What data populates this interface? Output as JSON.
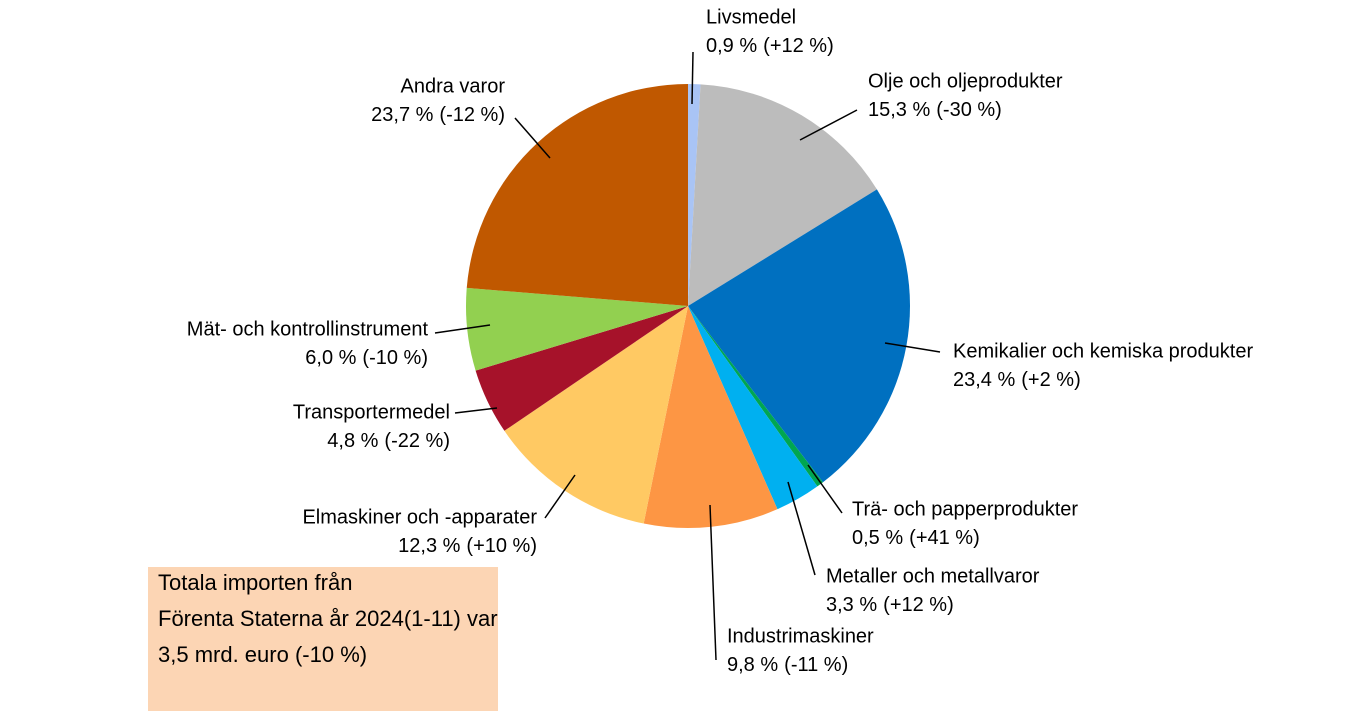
{
  "chart_data": {
    "type": "pie",
    "categories": [
      "Livsmedel",
      "Olje och oljeprodukter",
      "Kemikalier och kemiska produkter",
      "Trä- och papperprodukter",
      "Metaller och metallvaror",
      "Industrimaskiner",
      "Elmaskiner och -apparater",
      "Transportermedel",
      "Mät- och kontrollinstrument",
      "Andra varor"
    ],
    "values": [
      0.9,
      15.3,
      23.4,
      0.5,
      3.3,
      9.8,
      12.3,
      4.8,
      6.0,
      23.7
    ],
    "value_labels": [
      "0,9 %",
      "15,3 %",
      "23,4 %",
      "0,5 %",
      "3,3 %",
      "9,8 %",
      "12,3 %",
      "4,8 %",
      "6,0 %",
      "23,7 %"
    ],
    "change_labels": [
      "(+12 %)",
      "(-30 %)",
      "(+2 %)",
      "(+41 %)",
      "(+12 %)",
      "(-11 %)",
      "(+10 %)",
      "(-22 %)",
      "(-10 %)",
      "(-12 %)"
    ],
    "colors": [
      "#a9c4f5",
      "#bcbcbc",
      "#0070c0",
      "#00a651",
      "#00b0f0",
      "#fd9644",
      "#ffc963",
      "#a6122a",
      "#92d050",
      "#c05800"
    ],
    "annotation": [
      "Totala importen från",
      "Förenta Staterna år 2024(1-11) var",
      "3,5 mrd. euro (-10 %)"
    ]
  }
}
